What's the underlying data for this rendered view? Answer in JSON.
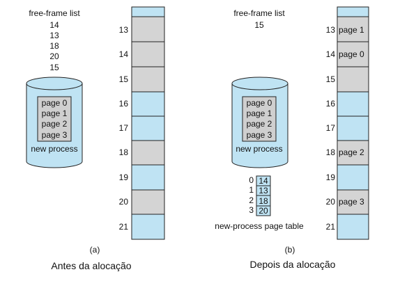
{
  "panel_a": {
    "free_frame_title": "free-frame list",
    "free_frames": [
      "14",
      "13",
      "18",
      "20",
      "15"
    ],
    "process_pages": [
      "page 0",
      "page 1",
      "page 2",
      "page 3"
    ],
    "process_label": "new process",
    "frames": [
      {
        "number": "",
        "content": "",
        "state": "used"
      },
      {
        "number": "13",
        "content": "",
        "state": "free"
      },
      {
        "number": "14",
        "content": "",
        "state": "free"
      },
      {
        "number": "15",
        "content": "",
        "state": "free"
      },
      {
        "number": "16",
        "content": "",
        "state": "used"
      },
      {
        "number": "17",
        "content": "",
        "state": "used"
      },
      {
        "number": "18",
        "content": "",
        "state": "free"
      },
      {
        "number": "19",
        "content": "",
        "state": "used"
      },
      {
        "number": "20",
        "content": "",
        "state": "free"
      },
      {
        "number": "21",
        "content": "",
        "state": "used"
      }
    ],
    "sub_label": "(a)",
    "caption": "Antes da alocação"
  },
  "panel_b": {
    "free_frame_title": "free-frame list",
    "free_frames": [
      "15"
    ],
    "process_pages": [
      "page 0",
      "page 1",
      "page 2",
      "page 3"
    ],
    "process_label": "new process",
    "page_table": [
      {
        "page": "0",
        "frame": "14"
      },
      {
        "page": "1",
        "frame": "13"
      },
      {
        "page": "2",
        "frame": "18"
      },
      {
        "page": "3",
        "frame": "20"
      }
    ],
    "page_table_label": "new-process page table",
    "frames": [
      {
        "number": "",
        "content": "",
        "state": "used"
      },
      {
        "number": "13",
        "content": "page 1",
        "state": "free"
      },
      {
        "number": "14",
        "content": "page 0",
        "state": "free"
      },
      {
        "number": "15",
        "content": "",
        "state": "free"
      },
      {
        "number": "16",
        "content": "",
        "state": "used"
      },
      {
        "number": "17",
        "content": "",
        "state": "used"
      },
      {
        "number": "18",
        "content": "page 2",
        "state": "free"
      },
      {
        "number": "19",
        "content": "",
        "state": "used"
      },
      {
        "number": "20",
        "content": "page 3",
        "state": "free"
      },
      {
        "number": "21",
        "content": "",
        "state": "used"
      }
    ],
    "sub_label": "(b)",
    "caption": "Depois da alocação"
  },
  "colors": {
    "used_frame": "#bfe3f3",
    "free_frame": "#d4d4d4",
    "cylinder": "#bfe3f3",
    "page_box": "#cfcfcf",
    "table_cell": "#bfe3f3"
  }
}
